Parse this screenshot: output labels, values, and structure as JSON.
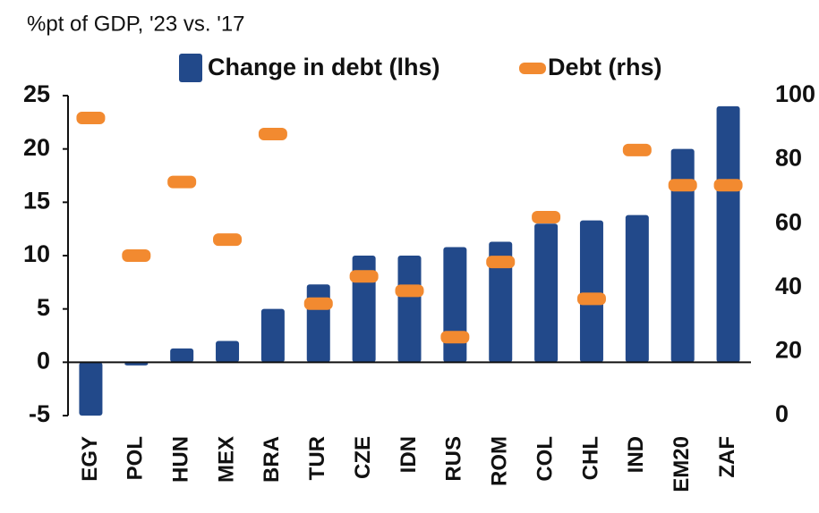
{
  "chart_data": {
    "type": "bar",
    "title": "%pt of GDP, '23 vs. '17",
    "categories": [
      "EGY",
      "POL",
      "HUN",
      "MEX",
      "BRA",
      "TUR",
      "CZE",
      "IDN",
      "RUS",
      "ROM",
      "COL",
      "CHL",
      "IND",
      "EM20",
      "ZAF"
    ],
    "series": [
      {
        "name": "Change in debt (lhs)",
        "color": "#22498a",
        "values": [
          -5,
          -0.3,
          1.3,
          2,
          5,
          7.3,
          10,
          10,
          10.8,
          11.3,
          13,
          13.3,
          13.8,
          20,
          24
        ]
      },
      {
        "name": "Debt (rhs)",
        "color": "#f28a30",
        "axis": "y2",
        "values": [
          93,
          50,
          73,
          55,
          88,
          35,
          43.5,
          39,
          24.5,
          48,
          62,
          36.5,
          83,
          72,
          72
        ]
      }
    ],
    "ylim": [
      -5,
      25
    ],
    "yticks": [
      -5,
      0,
      5,
      10,
      15,
      20,
      25
    ],
    "y2lim": [
      0,
      100
    ],
    "y2ticks": [
      0,
      20,
      40,
      60,
      80,
      100
    ],
    "legend": "top"
  }
}
